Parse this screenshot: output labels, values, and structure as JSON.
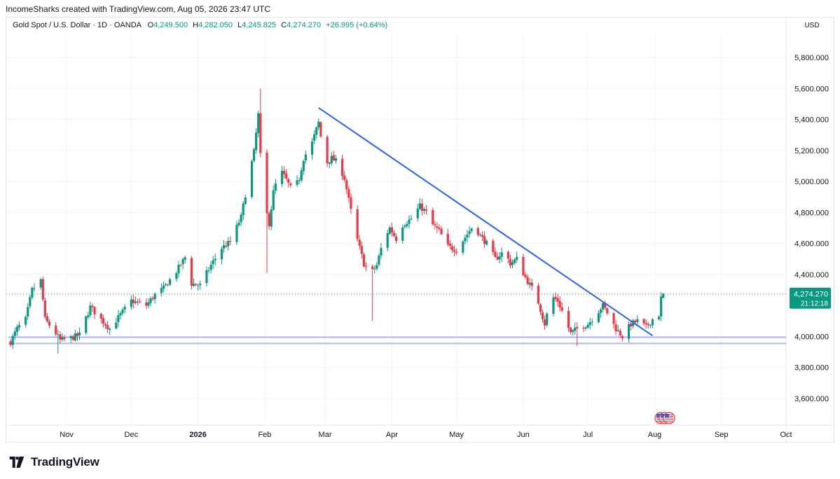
{
  "header": {
    "publisher": "IncomeSharks created with TradingView.com, Aug 05, 2026 23:47 UTC"
  },
  "legend": {
    "symbol": "Gold Spot / U.S. Dollar · 1D · OANDA",
    "o_label": "O",
    "o": "4,249.500",
    "h_label": "H",
    "h": "4,282.050",
    "l_label": "L",
    "l": "4,245.825",
    "c_label": "C",
    "c": "4,274.270",
    "change": "+26.995 (+0.64%)"
  },
  "axis": {
    "currency": "USD"
  },
  "price_tag": {
    "price": "4,274.270",
    "countdown": "21:12:18"
  },
  "footer": {
    "brand": "TradingView"
  },
  "colors": {
    "up": "#089981",
    "down": "#F23645",
    "trendline": "#2962FF",
    "support": "#9FA8F5",
    "tag": "#089981"
  },
  "icons": [
    "tradingview-logo-icon",
    "us-flag-event-icon"
  ],
  "chart_data": {
    "type": "candlestick",
    "title": "Gold Spot / U.S. Dollar · 1D · OANDA",
    "ylim": [
      3500,
      5950
    ],
    "y_ticks": [
      {
        "label": "5,800.000",
        "value": 5800
      },
      {
        "label": "5,600.000",
        "value": 5600
      },
      {
        "label": "5,400.000",
        "value": 5400
      },
      {
        "label": "5,200.000",
        "value": 5200
      },
      {
        "label": "5,000.000",
        "value": 5000
      },
      {
        "label": "4,800.000",
        "value": 4800
      },
      {
        "label": "4,600.000",
        "value": 4600
      },
      {
        "label": "4,400.000",
        "value": 4400
      },
      {
        "label": "4,000.000",
        "value": 4000
      },
      {
        "label": "3,800.000",
        "value": 3800
      },
      {
        "label": "3,600.000",
        "value": 3600
      }
    ],
    "x_ticks": [
      {
        "label": "Nov",
        "date": "2025-11-01"
      },
      {
        "label": "Dec",
        "date": "2025-12-01"
      },
      {
        "label": "2026",
        "date": "2026-01-01",
        "bold": true
      },
      {
        "label": "Feb",
        "date": "2026-02-01"
      },
      {
        "label": "Mar",
        "date": "2026-03-01"
      },
      {
        "label": "Apr",
        "date": "2026-04-01"
      },
      {
        "label": "May",
        "date": "2026-05-01"
      },
      {
        "label": "Jun",
        "date": "2026-06-01"
      },
      {
        "label": "Jul",
        "date": "2026-07-01"
      },
      {
        "label": "Aug",
        "date": "2026-08-01"
      },
      {
        "label": "Sep",
        "date": "2026-09-01"
      },
      {
        "label": "Oct",
        "date": "2026-10-01"
      }
    ],
    "x_range": [
      "2025-10-04",
      "2026-10-01"
    ],
    "last_price": 4274.27,
    "trendline": {
      "from": {
        "date": "2026-02-26",
        "price": 5475
      },
      "to": {
        "date": "2026-07-31",
        "price": 4005
      }
    },
    "support_levels": [
      3995,
      3955
    ],
    "close_path": [
      [
        "2025-10-06",
        3965
      ],
      [
        "2025-10-09",
        4050
      ],
      [
        "2025-10-13",
        4110
      ],
      [
        "2025-10-16",
        4300
      ],
      [
        "2025-10-20",
        4360
      ],
      [
        "2025-10-22",
        4110
      ],
      [
        "2025-10-27",
        4020
      ],
      [
        "2025-10-29",
        3975
      ],
      [
        "2025-11-03",
        3990
      ],
      [
        "2025-11-07",
        4010
      ],
      [
        "2025-11-12",
        4190
      ],
      [
        "2025-11-17",
        4110
      ],
      [
        "2025-11-21",
        4050
      ],
      [
        "2025-11-26",
        4140
      ],
      [
        "2025-12-01",
        4230
      ],
      [
        "2025-12-08",
        4200
      ],
      [
        "2025-12-12",
        4270
      ],
      [
        "2025-12-16",
        4310
      ],
      [
        "2025-12-22",
        4420
      ],
      [
        "2025-12-26",
        4510
      ],
      [
        "2025-12-29",
        4340
      ],
      [
        "2026-01-02",
        4330
      ],
      [
        "2026-01-07",
        4460
      ],
      [
        "2026-01-12",
        4570
      ],
      [
        "2026-01-16",
        4610
      ],
      [
        "2026-01-21",
        4770
      ],
      [
        "2026-01-24",
        4990
      ],
      [
        "2026-01-27",
        5190
      ],
      [
        "2026-01-29",
        5430
      ],
      [
        "2026-01-31",
        4900
      ],
      [
        "2026-02-03",
        4730
      ],
      [
        "2026-02-05",
        4930
      ],
      [
        "2026-02-08",
        5080
      ],
      [
        "2026-02-11",
        5010
      ],
      [
        "2026-02-14",
        4930
      ],
      [
        "2026-02-17",
        5020
      ],
      [
        "2026-02-19",
        5150
      ],
      [
        "2026-02-23",
        5250
      ],
      [
        "2026-02-26",
        5380
      ],
      [
        "2026-03-01",
        5110
      ],
      [
        "2026-03-04",
        5150
      ],
      [
        "2026-03-07",
        5120
      ],
      [
        "2026-03-10",
        5020
      ],
      [
        "2026-03-13",
        4810
      ],
      [
        "2026-03-16",
        4620
      ],
      [
        "2026-03-19",
        4470
      ],
      [
        "2026-03-22",
        4400
      ],
      [
        "2026-03-25",
        4460
      ],
      [
        "2026-03-28",
        4620
      ],
      [
        "2026-03-31",
        4700
      ],
      [
        "2026-04-03",
        4630
      ],
      [
        "2026-04-06",
        4720
      ],
      [
        "2026-04-10",
        4760
      ],
      [
        "2026-04-14",
        4840
      ],
      [
        "2026-04-17",
        4800
      ],
      [
        "2026-04-20",
        4720
      ],
      [
        "2026-04-23",
        4680
      ],
      [
        "2026-04-27",
        4580
      ],
      [
        "2026-05-01",
        4560
      ],
      [
        "2026-05-05",
        4640
      ],
      [
        "2026-05-09",
        4720
      ],
      [
        "2026-05-12",
        4650
      ],
      [
        "2026-05-15",
        4600
      ],
      [
        "2026-05-19",
        4500
      ],
      [
        "2026-05-23",
        4550
      ],
      [
        "2026-05-26",
        4470
      ],
      [
        "2026-05-29",
        4500
      ],
      [
        "2026-06-02",
        4380
      ],
      [
        "2026-06-05",
        4310
      ],
      [
        "2026-06-08",
        4220
      ],
      [
        "2026-06-11",
        4080
      ],
      [
        "2026-06-14",
        4260
      ],
      [
        "2026-06-17",
        4230
      ],
      [
        "2026-06-20",
        4130
      ],
      [
        "2026-06-23",
        4020
      ],
      [
        "2026-06-27",
        4060
      ],
      [
        "2026-07-01",
        4080
      ],
      [
        "2026-07-04",
        4130
      ],
      [
        "2026-07-08",
        4200
      ],
      [
        "2026-07-11",
        4130
      ],
      [
        "2026-07-14",
        4050
      ],
      [
        "2026-07-17",
        4000
      ],
      [
        "2026-07-21",
        4080
      ],
      [
        "2026-07-24",
        4100
      ],
      [
        "2026-07-28",
        4060
      ],
      [
        "2026-07-31",
        4110
      ],
      [
        "2026-08-03",
        4140
      ],
      [
        "2026-08-04",
        4247
      ],
      [
        "2026-08-05",
        4274
      ]
    ],
    "extreme_wicks": [
      {
        "date": "2026-01-30",
        "high": 5600
      },
      {
        "date": "2026-02-02",
        "low": 4410
      },
      {
        "date": "2026-03-23",
        "low": 4100
      },
      {
        "date": "2026-06-27",
        "low": 3940
      },
      {
        "date": "2025-10-28",
        "low": 3890
      }
    ]
  }
}
